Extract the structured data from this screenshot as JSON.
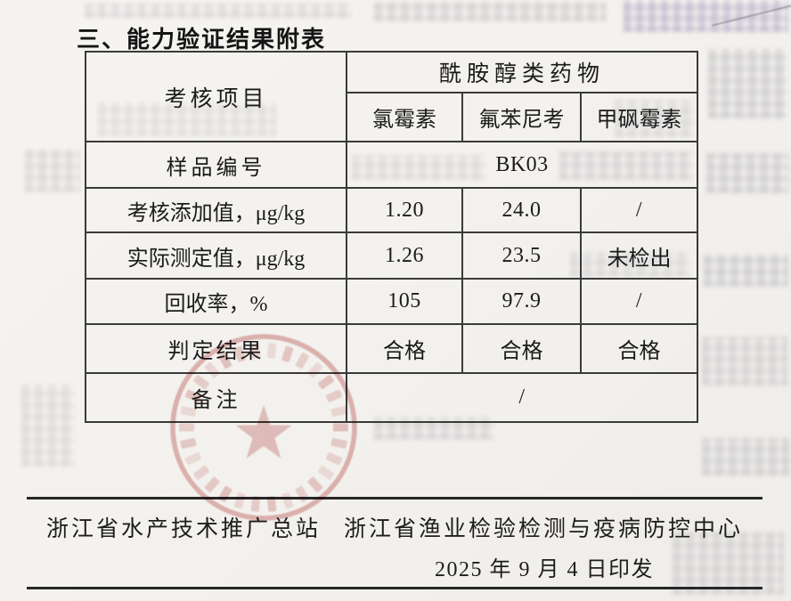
{
  "title": "三、能力验证结果附表",
  "table": {
    "corner_header": "考核项目",
    "group_header": "酰胺醇类药物",
    "columns": [
      "氯霉素",
      "氟苯尼考",
      "甲砜霉素"
    ],
    "sample_id": {
      "label": "样品编号",
      "value": "BK03"
    },
    "spiked": {
      "label": "考核添加值，μg/kg",
      "values": [
        "1.20",
        "24.0",
        "/"
      ]
    },
    "measured": {
      "label": "实际测定值，μg/kg",
      "values": [
        "1.26",
        "23.5",
        "未检出"
      ]
    },
    "recovery": {
      "label": "回收率，%",
      "values": [
        "105",
        "97.9",
        "/"
      ]
    },
    "judgment": {
      "label": "判定结果",
      "values": [
        "合格",
        "合格",
        "合格"
      ]
    },
    "remarks": {
      "label": "备注",
      "value": "/"
    }
  },
  "footer": {
    "org_left": "浙江省水产技术推广总站",
    "org_right": "浙江省渔业检验检测与疫病防控中心",
    "date_line": "2025 年 9 月 4 日印发"
  },
  "seal": {
    "icon": "red-star-seal",
    "color": "#c25e5e"
  }
}
